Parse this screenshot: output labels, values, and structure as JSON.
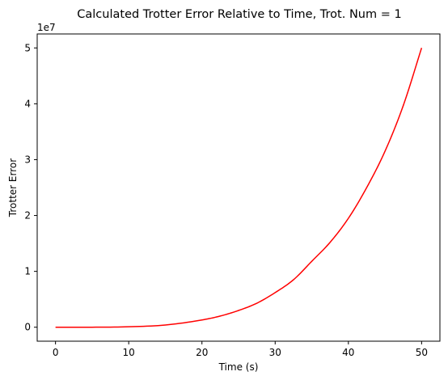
{
  "chart_data": {
    "type": "line",
    "title": "Calculated Trotter Error Relative to Time, Trot. Num = 1",
    "xlabel": "Time (s)",
    "ylabel": "Trotter Error",
    "y_offset_label": "1e7",
    "xlim": [
      -2.5,
      52.5
    ],
    "ylim": [
      -2500000,
      52500000
    ],
    "x_ticks": [
      0,
      10,
      20,
      30,
      40,
      50
    ],
    "x_tick_labels": [
      "0",
      "10",
      "20",
      "30",
      "40",
      "50"
    ],
    "y_ticks": [
      0,
      10000000,
      20000000,
      30000000,
      40000000,
      50000000
    ],
    "y_tick_labels": [
      "0",
      "1",
      "2",
      "3",
      "4",
      "5"
    ],
    "grid": false,
    "series": [
      {
        "color": "#ff0000",
        "x": [
          0,
          5,
          10,
          15,
          20,
          22.5,
          25,
          27.5,
          30,
          32.5,
          35,
          37.5,
          40,
          42.5,
          45,
          47.5,
          50
        ],
        "y": [
          0,
          5000,
          80000,
          400000,
          1300000,
          2000000,
          3000000,
          4300000,
          6200000,
          8500000,
          11800000,
          15200000,
          19500000,
          25000000,
          31500000,
          39700000,
          50000000
        ]
      }
    ]
  }
}
